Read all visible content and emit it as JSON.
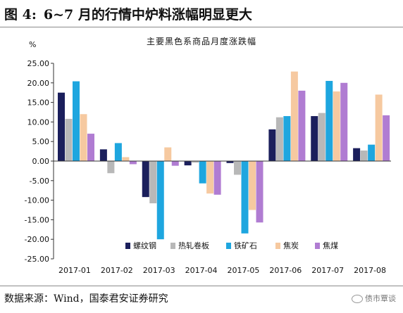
{
  "figure": {
    "label": "图 4:",
    "title": "6~7 月的行情中炉料涨幅明显更大"
  },
  "source": "数据来源：Wind，国泰君安证券研究",
  "watermark": "债市覃谈",
  "chart_data": {
    "type": "bar",
    "title": "主要黑色系商品月度涨跌幅",
    "ylabel": "%",
    "ylim": [
      -25,
      25
    ],
    "yticks": [
      25,
      20,
      15,
      10,
      5,
      0,
      -5,
      -10,
      -15,
      -20,
      -25
    ],
    "ytick_labels": [
      "25.00",
      "20.00",
      "15.00",
      "10.00",
      "5.00",
      "0.00",
      "-5.00",
      "-10.00",
      "-15.00",
      "-20.00",
      "-25.00"
    ],
    "categories": [
      "2017-01",
      "2017-02",
      "2017-03",
      "2017-04",
      "2017-05",
      "2017-06",
      "2017-07",
      "2017-08"
    ],
    "legend_position": "bottom-inside",
    "grid": false,
    "series": [
      {
        "name": "螺纹钢",
        "color": "#1b1f5c",
        "values": [
          17.5,
          3.0,
          -9.2,
          -1.1,
          -0.5,
          8.1,
          11.5,
          3.3
        ]
      },
      {
        "name": "热轧卷板",
        "color": "#b8b8b8",
        "values": [
          10.8,
          -3.1,
          -10.8,
          -0.4,
          -3.5,
          11.2,
          12.3,
          2.7
        ]
      },
      {
        "name": "铁矿石",
        "color": "#1ea6df",
        "values": [
          20.4,
          4.6,
          -20.0,
          -5.7,
          -18.5,
          11.5,
          20.5,
          4.2
        ]
      },
      {
        "name": "焦炭",
        "color": "#f6c9a0",
        "values": [
          12.0,
          1.0,
          3.5,
          -8.3,
          -12.5,
          22.9,
          17.8,
          17.0
        ]
      },
      {
        "name": "焦煤",
        "color": "#b07cd2",
        "values": [
          7.0,
          -0.8,
          -1.2,
          -8.6,
          -15.7,
          18.0,
          20.0,
          11.7
        ]
      }
    ]
  }
}
